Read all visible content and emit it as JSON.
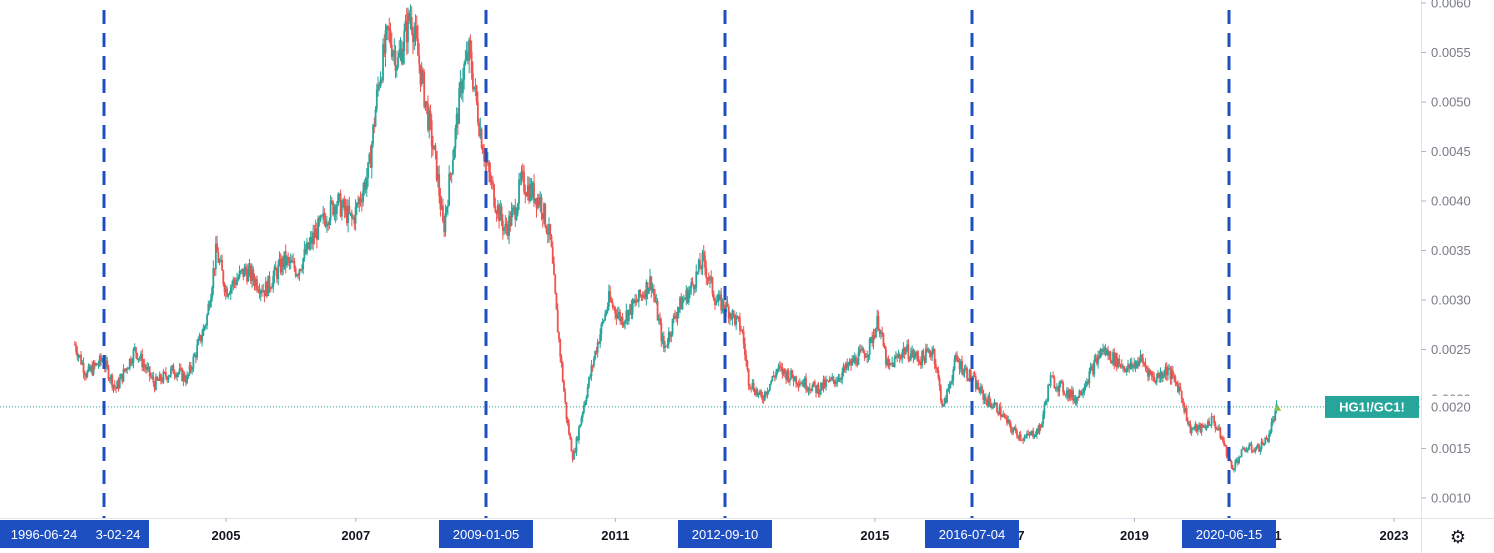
{
  "chart_data": {
    "type": "candlestick",
    "symbol": "HG1!/GC1!",
    "last_value": 0.00192,
    "y_axis": {
      "ticks": [
        "0.0010",
        "0.0015",
        "0.0020",
        "0.0025",
        "0.0030",
        "0.0035",
        "0.0040",
        "0.0045",
        "0.0050",
        "0.0055",
        "0.0060"
      ],
      "range": [
        0.00075,
        0.006
      ]
    },
    "x_axis": {
      "range": [
        2002.67,
        2024.65
      ],
      "ticks": [
        {
          "label": "2005",
          "year": 2005.0
        },
        {
          "label": "2007",
          "year": 2007.0
        },
        {
          "label": "2011",
          "year": 2011.0
        },
        {
          "label": "2015",
          "year": 2015.0
        },
        {
          "label": "2019",
          "year": 2019.0
        },
        {
          "label": "2023",
          "year": 2023.0
        }
      ]
    },
    "cycle_markers": [
      {
        "date": "1996-06-24",
        "year": 2002.7,
        "partial_label": "1996-06-24 "
      },
      {
        "date": "2003-02-24",
        "year": 2003.15,
        "partial_label": "3-02-24"
      },
      {
        "date": "2009-01-05",
        "year": 2009.0,
        "partial_label": "2009-01-05"
      },
      {
        "date": "2012-09-10",
        "year": 2012.7,
        "partial_label": "2012-09-10"
      },
      {
        "date": "2016-07-04",
        "year": 2016.5,
        "partial_label": "2016-07-04"
      },
      {
        "date": "2020-06-15",
        "year": 2020.45,
        "partial_label": "2020-06-15"
      }
    ],
    "price_path": [
      [
        2002.67,
        0.00255
      ],
      [
        2002.85,
        0.00225
      ],
      [
        2003.1,
        0.0024
      ],
      [
        2003.3,
        0.0021
      ],
      [
        2003.6,
        0.0025
      ],
      [
        2003.9,
        0.00215
      ],
      [
        2004.2,
        0.0023
      ],
      [
        2004.4,
        0.0022
      ],
      [
        2004.55,
        0.0025
      ],
      [
        2004.7,
        0.0028
      ],
      [
        2004.85,
        0.0035
      ],
      [
        2005.0,
        0.0031
      ],
      [
        2005.3,
        0.0033
      ],
      [
        2005.6,
        0.0031
      ],
      [
        2005.9,
        0.0034
      ],
      [
        2006.1,
        0.0033
      ],
      [
        2006.4,
        0.0037
      ],
      [
        2006.7,
        0.004
      ],
      [
        2006.95,
        0.0038
      ],
      [
        2007.2,
        0.0043
      ],
      [
        2007.35,
        0.0052
      ],
      [
        2007.5,
        0.0057
      ],
      [
        2007.65,
        0.0054
      ],
      [
        2007.85,
        0.0059
      ],
      [
        2007.95,
        0.0055
      ],
      [
        2008.1,
        0.0049
      ],
      [
        2008.25,
        0.0043
      ],
      [
        2008.35,
        0.0037
      ],
      [
        2008.5,
        0.0045
      ],
      [
        2008.65,
        0.0053
      ],
      [
        2008.75,
        0.0055
      ],
      [
        2008.9,
        0.0048
      ],
      [
        2009.0,
        0.0044
      ],
      [
        2009.15,
        0.004
      ],
      [
        2009.3,
        0.0037
      ],
      [
        2009.45,
        0.0039
      ],
      [
        2009.55,
        0.0042
      ],
      [
        2009.7,
        0.0041
      ],
      [
        2009.85,
        0.004
      ],
      [
        2010.0,
        0.0036
      ],
      [
        2010.1,
        0.0028
      ],
      [
        2010.25,
        0.0018
      ],
      [
        2010.35,
        0.0014
      ],
      [
        2010.5,
        0.0019
      ],
      [
        2010.7,
        0.0025
      ],
      [
        2010.9,
        0.003
      ],
      [
        2011.1,
        0.0028
      ],
      [
        2011.35,
        0.003
      ],
      [
        2011.55,
        0.0032
      ],
      [
        2011.75,
        0.0025
      ],
      [
        2011.95,
        0.0029
      ],
      [
        2012.15,
        0.0031
      ],
      [
        2012.35,
        0.0034
      ],
      [
        2012.55,
        0.003
      ],
      [
        2012.75,
        0.0029
      ],
      [
        2012.95,
        0.0027
      ],
      [
        2013.05,
        0.0022
      ],
      [
        2013.25,
        0.002
      ],
      [
        2013.5,
        0.0023
      ],
      [
        2013.8,
        0.0022
      ],
      [
        2014.1,
        0.0021
      ],
      [
        2014.4,
        0.0022
      ],
      [
        2014.7,
        0.0024
      ],
      [
        2014.9,
        0.0025
      ],
      [
        2015.05,
        0.0028
      ],
      [
        2015.2,
        0.0023
      ],
      [
        2015.45,
        0.0025
      ],
      [
        2015.7,
        0.0024
      ],
      [
        2015.9,
        0.0025
      ],
      [
        2016.05,
        0.0019
      ],
      [
        2016.25,
        0.0024
      ],
      [
        2016.5,
        0.0022
      ],
      [
        2016.7,
        0.002
      ],
      [
        2016.9,
        0.0019
      ],
      [
        2017.1,
        0.0017
      ],
      [
        2017.3,
        0.0016
      ],
      [
        2017.55,
        0.0017
      ],
      [
        2017.7,
        0.0022
      ],
      [
        2017.9,
        0.0021
      ],
      [
        2018.1,
        0.002
      ],
      [
        2018.35,
        0.0023
      ],
      [
        2018.5,
        0.0025
      ],
      [
        2018.7,
        0.0024
      ],
      [
        2018.9,
        0.0023
      ],
      [
        2019.1,
        0.0024
      ],
      [
        2019.3,
        0.0022
      ],
      [
        2019.5,
        0.0023
      ],
      [
        2019.7,
        0.0021
      ],
      [
        2019.85,
        0.0017
      ],
      [
        2020.05,
        0.0017
      ],
      [
        2020.2,
        0.0018
      ],
      [
        2020.35,
        0.0016
      ],
      [
        2020.5,
        0.0013
      ],
      [
        2020.7,
        0.0015
      ],
      [
        2020.9,
        0.0015
      ],
      [
        2021.05,
        0.0016
      ],
      [
        2021.2,
        0.00192
      ]
    ]
  }
}
